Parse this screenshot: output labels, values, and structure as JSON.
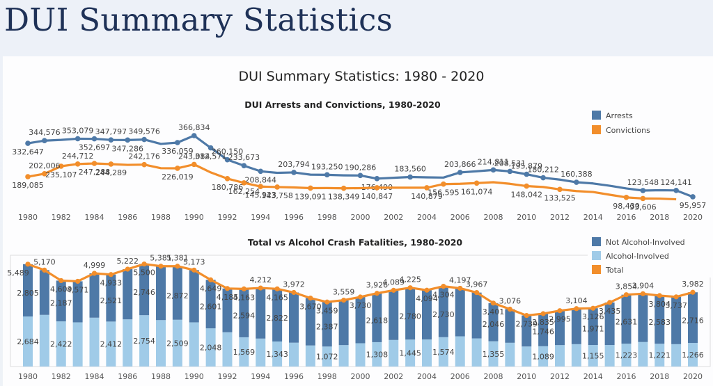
{
  "header": {
    "title": "DUI Summary Statistics"
  },
  "dashboard": {
    "title": "DUI Summary Statistics: 1980 - 2020"
  },
  "colors": {
    "arrests": "#4e79a7",
    "convictions": "#f28e2b",
    "not_alcohol": "#4e79a7",
    "alcohol": "#a0cbe8",
    "total": "#f28e2b"
  },
  "chart_data": [
    {
      "type": "line",
      "title": "DUI Arrests and Convictions, 1980-2020",
      "xlabel": "",
      "ylabel": "",
      "x": [
        1980,
        1981,
        1982,
        1983,
        1984,
        1985,
        1986,
        1987,
        1988,
        1989,
        1990,
        1991,
        1992,
        1993,
        1994,
        1995,
        1996,
        1997,
        1998,
        1999,
        2000,
        2001,
        2002,
        2003,
        2004,
        2005,
        2006,
        2007,
        2008,
        2009,
        2010,
        2011,
        2012,
        2013,
        2014,
        2015,
        2016,
        2017,
        2018,
        2019,
        2020
      ],
      "x_ticks": [
        "1980",
        "1982",
        "1984",
        "1986",
        "1988",
        "1990",
        "1992",
        "1994",
        "1996",
        "1998",
        "2000",
        "2002",
        "2004",
        "2006",
        "2008",
        "2010",
        "2012",
        "2014",
        "2016",
        "2018",
        "2020"
      ],
      "legend": [
        "Arrests",
        "Convictions"
      ],
      "legend_position": "top-right",
      "grid": false,
      "series": [
        {
          "name": "Arrests",
          "values": [
            332647,
            344576,
            348000,
            353079,
            352697,
            347797,
            347286,
            349576,
            330000,
            336059,
            366834,
            312571,
            260150,
            233673,
            208844,
            202000,
            203794,
            194000,
            193250,
            191000,
            190286,
            176490,
            180000,
            183560,
            182000,
            181000,
            203866,
            209000,
            214811,
            208531,
            195879,
            180212,
            172000,
            160388,
            155000,
            145000,
            133000,
            123548,
            125000,
            124141,
            95957
          ],
          "labeled": [
            1,
            1,
            0,
            1,
            1,
            1,
            1,
            1,
            0,
            1,
            1,
            1,
            1,
            1,
            1,
            0,
            1,
            0,
            1,
            0,
            1,
            1,
            0,
            1,
            0,
            0,
            1,
            0,
            1,
            1,
            1,
            1,
            0,
            1,
            0,
            0,
            0,
            1,
            0,
            1,
            1
          ]
        },
        {
          "name": "Convictions",
          "values": [
            189085,
            202006,
            235107,
            244712,
            247288,
            244289,
            241000,
            242176,
            226500,
            226019,
            243084,
            208000,
            180786,
            162254,
            145923,
            143758,
            142000,
            139091,
            139500,
            138349,
            139000,
            140847,
            141000,
            141000,
            140879,
            156595,
            158000,
            161074,
            165000,
            158000,
            148042,
            144000,
            133525,
            126000,
            122000,
            110000,
            98430,
            93606,
            93000,
            90000,
            null
          ],
          "labeled": [
            1,
            1,
            1,
            1,
            1,
            1,
            0,
            1,
            0,
            1,
            1,
            0,
            1,
            1,
            1,
            1,
            0,
            1,
            0,
            1,
            0,
            1,
            0,
            0,
            1,
            1,
            0,
            1,
            0,
            0,
            1,
            0,
            1,
            0,
            0,
            0,
            1,
            1,
            0,
            0,
            0
          ]
        }
      ]
    },
    {
      "type": "bar",
      "stacked": true,
      "title": "Total vs Alcohol Crash Fatalities, 1980-2020",
      "xlabel": "",
      "ylabel": "",
      "categories": [
        1980,
        1981,
        1982,
        1983,
        1984,
        1985,
        1986,
        1987,
        1988,
        1989,
        1990,
        1991,
        1992,
        1993,
        1994,
        1995,
        1996,
        1997,
        1998,
        1999,
        2000,
        2001,
        2002,
        2003,
        2004,
        2005,
        2006,
        2007,
        2008,
        2009,
        2010,
        2011,
        2012,
        2013,
        2014,
        2015,
        2016,
        2017,
        2018,
        2019,
        2020
      ],
      "x_ticks": [
        "1980",
        "1982",
        "1984",
        "1986",
        "1988",
        "1990",
        "1992",
        "1994",
        "1996",
        "1998",
        "2000",
        "2002",
        "2004",
        "2006",
        "2008",
        "2010",
        "2012",
        "2014",
        "2016",
        "2018",
        "2020"
      ],
      "legend": [
        "Not Alcohol-Involved",
        "Alcohol-Involved",
        "Total"
      ],
      "legend_position": "top-right",
      "grid": false,
      "ylim": [
        0,
        6000
      ],
      "series": [
        {
          "name": "Alcohol-Involved",
          "values": [
            2684,
            2770,
            2422,
            2370,
            2620,
            2412,
            2530,
            2754,
            2490,
            2509,
            2370,
            2048,
            1840,
            1569,
            1500,
            1343,
            1280,
            1130,
            1072,
            1150,
            1250,
            1308,
            1425,
            1445,
            1450,
            1574,
            1620,
            1510,
            1355,
            1275,
            1075,
            1089,
            1150,
            1200,
            1155,
            1155,
            1223,
            1315,
            1221,
            1200,
            1266
          ]
        },
        {
          "name": "Not Alcohol-Involved",
          "values": [
            2805,
            2400,
            2187,
            2201,
            2379,
            2521,
            2692,
            2746,
            2891,
            2872,
            2803,
            2601,
            2345,
            2594,
            2712,
            2822,
            2692,
            2540,
            2387,
            2409,
            2480,
            2618,
            2664,
            2780,
            2644,
            2730,
            2577,
            2457,
            2046,
            1801,
            1664,
            1746,
            1845,
            1904,
            1971,
            2280,
            2631,
            2589,
            2583,
            2537,
            2716
          ]
        },
        {
          "name": "Total",
          "type": "line",
          "values": [
            5489,
            5170,
            4609,
            4571,
            4999,
            4933,
            5222,
            5500,
            5381,
            5381,
            5173,
            4649,
            4185,
            4163,
            4212,
            4165,
            3972,
            3670,
            3459,
            3559,
            3730,
            3926,
            4089,
            4225,
            4094,
            4304,
            4197,
            3967,
            3401,
            3076,
            2739,
            2835,
            2995,
            3104,
            3126,
            3435,
            3854,
            3904,
            3804,
            3737,
            3982
          ]
        }
      ],
      "segment_labeled_years": [
        1980,
        1982,
        1985,
        1987,
        1989,
        1991,
        1993,
        1995,
        1998,
        2001,
        2003,
        2005,
        2008,
        2011,
        2014,
        2016,
        2018,
        2020
      ]
    }
  ]
}
